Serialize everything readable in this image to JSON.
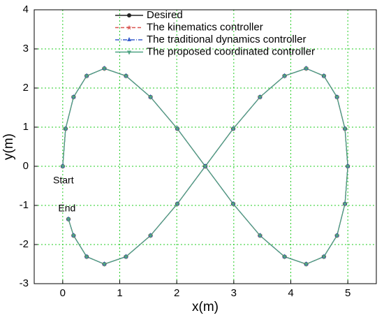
{
  "chart_data": {
    "type": "line",
    "xlabel": "x(m)",
    "ylabel": "y(m)",
    "xlim": [
      -0.5,
      5.5
    ],
    "xticks": [
      0,
      1,
      2,
      3,
      4,
      5
    ],
    "ylim": [
      -3,
      4
    ],
    "yticks": [
      -3,
      -2,
      -1,
      0,
      1,
      2,
      3,
      4
    ],
    "grid": true,
    "legend": "upper center",
    "annotations": [
      "Start",
      "End"
    ],
    "series": [
      {
        "name": "Desired",
        "color": "#222222",
        "linestyle": "solid",
        "marker": "circle",
        "x": [
          0,
          0.05,
          0.19,
          0.42,
          0.73,
          1.11,
          1.54,
          2.01,
          2.5,
          2.99,
          3.46,
          3.89,
          4.27,
          4.58,
          4.81,
          4.95,
          5,
          4.95,
          4.81,
          4.58,
          4.27,
          3.89,
          3.46,
          2.99,
          2.5,
          2.01,
          1.54,
          1.11,
          0.73,
          0.42,
          0.19,
          0.1
        ],
        "y": [
          0,
          0.96,
          1.77,
          2.31,
          2.5,
          2.31,
          1.77,
          0.96,
          0,
          -0.96,
          -1.77,
          -2.31,
          -2.5,
          -2.31,
          -1.77,
          -0.96,
          0,
          0.96,
          1.77,
          2.31,
          2.5,
          2.31,
          1.77,
          0.96,
          0,
          -0.96,
          -1.77,
          -2.31,
          -2.5,
          -2.31,
          -1.77,
          -1.35
        ]
      },
      {
        "name": "The kinematics controller",
        "color": "#d9534f",
        "linestyle": "dashed",
        "marker": "star",
        "x": [
          0,
          0.05,
          0.19,
          0.42,
          0.73,
          1.11,
          1.54,
          2.01,
          2.5,
          2.99,
          3.46,
          3.89,
          4.27,
          4.58,
          4.81,
          4.95,
          5,
          4.95,
          4.81,
          4.58,
          4.27,
          3.89,
          3.46,
          2.99,
          2.5,
          2.01,
          1.54,
          1.11,
          0.73,
          0.42,
          0.19,
          0.1
        ],
        "y": [
          0,
          0.96,
          1.77,
          2.31,
          2.5,
          2.31,
          1.77,
          0.96,
          0,
          -0.96,
          -1.77,
          -2.31,
          -2.5,
          -2.31,
          -1.77,
          -0.96,
          0,
          0.96,
          1.77,
          2.31,
          2.5,
          2.31,
          1.77,
          0.96,
          0,
          -0.96,
          -1.77,
          -2.31,
          -2.5,
          -2.31,
          -1.77,
          -1.35
        ]
      },
      {
        "name": "The traditional dynamics controller",
        "color": "#3a5fcd",
        "linestyle": "dashdot",
        "marker": "triangle",
        "x": [
          0,
          0.05,
          0.19,
          0.42,
          0.73,
          1.11,
          1.54,
          2.01,
          2.5,
          2.99,
          3.46,
          3.89,
          4.27,
          4.58,
          4.81,
          4.95,
          5,
          4.95,
          4.81,
          4.58,
          4.27,
          3.89,
          3.46,
          2.99,
          2.5,
          2.01,
          1.54,
          1.11,
          0.73,
          0.42,
          0.19,
          0.1
        ],
        "y": [
          0,
          0.96,
          1.77,
          2.31,
          2.5,
          2.31,
          1.77,
          0.96,
          0,
          -0.96,
          -1.77,
          -2.31,
          -2.5,
          -2.31,
          -1.77,
          -0.96,
          0,
          0.96,
          1.77,
          2.31,
          2.5,
          2.31,
          1.77,
          0.96,
          0,
          -0.96,
          -1.77,
          -2.31,
          -2.5,
          -2.31,
          -1.77,
          -1.35
        ]
      },
      {
        "name": "The proposed coordinated controller",
        "color": "#4fa383",
        "linestyle": "solid",
        "marker": "down-triangle",
        "x": [
          0,
          0.05,
          0.19,
          0.42,
          0.73,
          1.11,
          1.54,
          2.01,
          2.5,
          2.99,
          3.46,
          3.89,
          4.27,
          4.58,
          4.81,
          4.95,
          5,
          4.95,
          4.81,
          4.58,
          4.27,
          3.89,
          3.46,
          2.99,
          2.5,
          2.01,
          1.54,
          1.11,
          0.73,
          0.42,
          0.19,
          0.1
        ],
        "y": [
          0,
          0.96,
          1.77,
          2.31,
          2.5,
          2.31,
          1.77,
          0.96,
          0,
          -0.96,
          -1.77,
          -2.31,
          -2.5,
          -2.31,
          -1.77,
          -0.96,
          0,
          0.96,
          1.77,
          2.31,
          2.5,
          2.31,
          1.77,
          0.96,
          0,
          -0.96,
          -1.77,
          -2.31,
          -2.5,
          -2.31,
          -1.77,
          -1.35
        ]
      }
    ]
  }
}
